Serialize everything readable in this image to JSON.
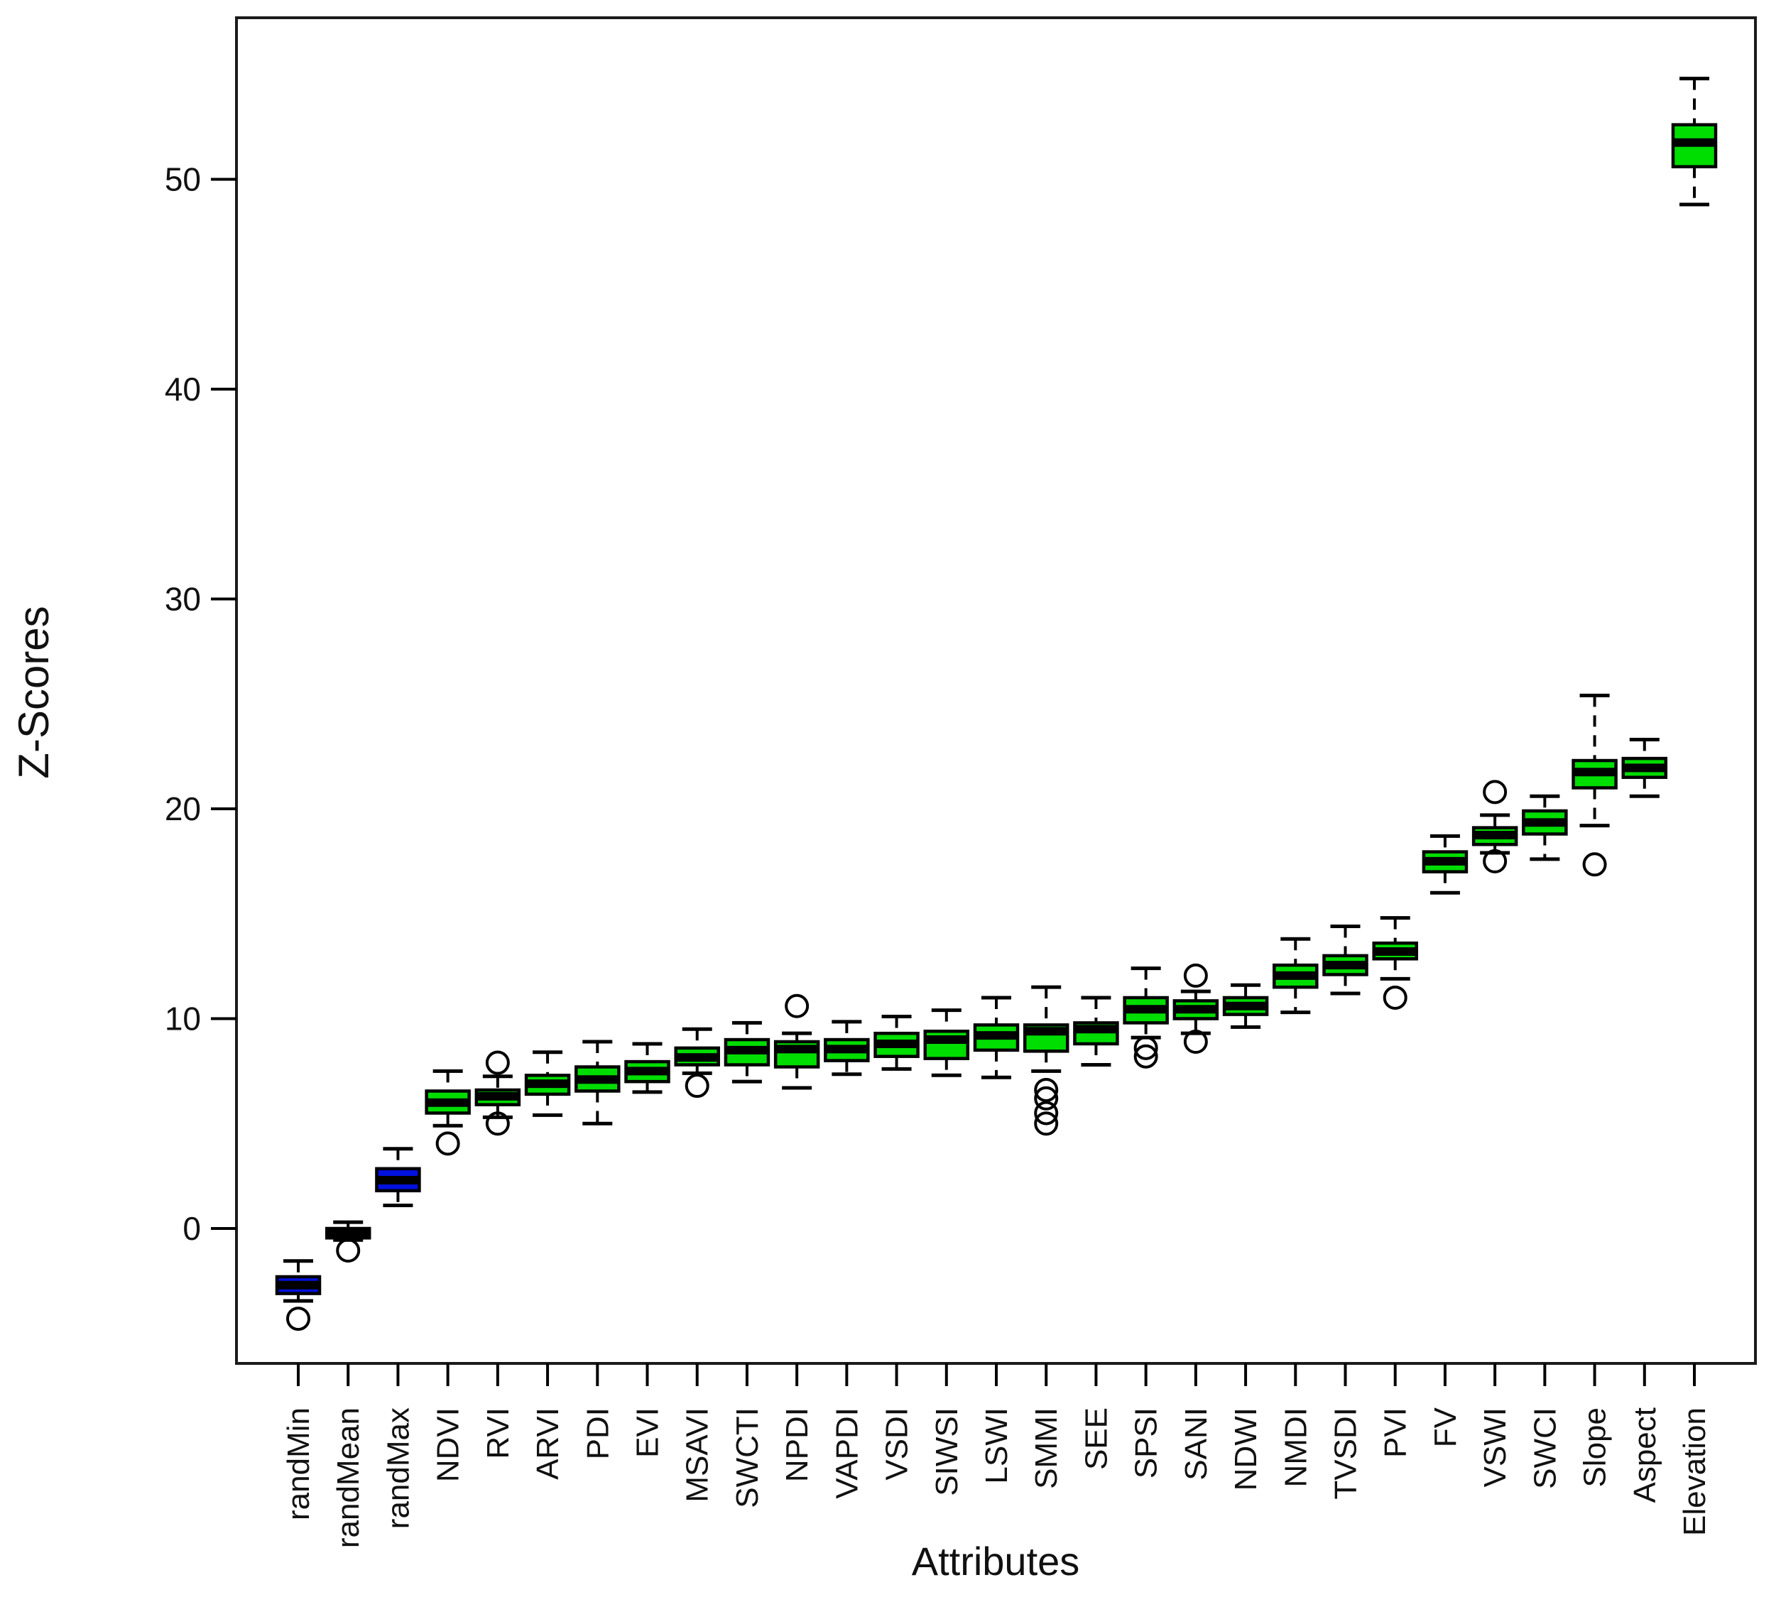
{
  "chart_data": {
    "type": "box",
    "title": "",
    "xlabel": "Attributes",
    "ylabel": "Z-Scores",
    "yticks": [
      0,
      10,
      20,
      30,
      40,
      50
    ],
    "ylim": [
      -6.4,
      57.6
    ],
    "grid": false,
    "legend": false,
    "colors": {
      "green_box": "#00DD00",
      "blue_box": "#0011DD",
      "line": "#000000",
      "background": "#ffffff"
    },
    "series": [
      {
        "label": "randMin",
        "fill": "blue",
        "low": -3.45,
        "q1": -3.1,
        "median": -2.7,
        "q3": -2.3,
        "high": -1.55,
        "outliers": [
          -4.3
        ]
      },
      {
        "label": "randMean",
        "fill": "blue",
        "low": -0.55,
        "q1": -0.45,
        "median": -0.22,
        "q3": 0.0,
        "high": 0.3,
        "outliers": [
          -1.05
        ]
      },
      {
        "label": "randMax",
        "fill": "blue",
        "low": 1.1,
        "q1": 1.8,
        "median": 2.3,
        "q3": 2.85,
        "high": 3.8,
        "outliers": []
      },
      {
        "label": "NDVI",
        "fill": "green",
        "low": 4.9,
        "q1": 5.5,
        "median": 6.0,
        "q3": 6.55,
        "high": 7.5,
        "outliers": [
          4.05
        ]
      },
      {
        "label": "RVI",
        "fill": "green",
        "low": 5.3,
        "q1": 5.9,
        "median": 6.3,
        "q3": 6.6,
        "high": 7.25,
        "outliers": [
          7.9,
          5.0
        ]
      },
      {
        "label": "ARVI",
        "fill": "green",
        "low": 5.4,
        "q1": 6.4,
        "median": 6.9,
        "q3": 7.3,
        "high": 8.4,
        "outliers": []
      },
      {
        "label": "PDI",
        "fill": "green",
        "low": 5.0,
        "q1": 6.55,
        "median": 7.1,
        "q3": 7.7,
        "high": 8.9,
        "outliers": []
      },
      {
        "label": "EVI",
        "fill": "green",
        "low": 6.5,
        "q1": 7.0,
        "median": 7.5,
        "q3": 7.95,
        "high": 8.8,
        "outliers": []
      },
      {
        "label": "MSAVI",
        "fill": "green",
        "low": 7.4,
        "q1": 7.8,
        "median": 8.15,
        "q3": 8.6,
        "high": 9.5,
        "outliers": [
          6.8
        ]
      },
      {
        "label": "SWCTI",
        "fill": "green",
        "low": 7.0,
        "q1": 7.8,
        "median": 8.5,
        "q3": 9.0,
        "high": 9.8,
        "outliers": []
      },
      {
        "label": "NPDI",
        "fill": "green",
        "low": 6.7,
        "q1": 7.7,
        "median": 8.55,
        "q3": 8.9,
        "high": 9.3,
        "outliers": [
          10.6
        ]
      },
      {
        "label": "VAPDI",
        "fill": "green",
        "low": 7.35,
        "q1": 8.0,
        "median": 8.55,
        "q3": 9.0,
        "high": 9.85,
        "outliers": []
      },
      {
        "label": "VSDI",
        "fill": "green",
        "low": 7.6,
        "q1": 8.2,
        "median": 8.8,
        "q3": 9.3,
        "high": 10.1,
        "outliers": []
      },
      {
        "label": "SIWSI",
        "fill": "green",
        "low": 7.3,
        "q1": 8.1,
        "median": 9.0,
        "q3": 9.4,
        "high": 10.4,
        "outliers": []
      },
      {
        "label": "LSWI",
        "fill": "green",
        "low": 7.2,
        "q1": 8.5,
        "median": 9.2,
        "q3": 9.7,
        "high": 11.0,
        "outliers": []
      },
      {
        "label": "SMMI",
        "fill": "green",
        "low": 7.5,
        "q1": 8.45,
        "median": 9.4,
        "q3": 9.7,
        "high": 11.5,
        "outliers": [
          6.6,
          6.2,
          5.5,
          5.0
        ]
      },
      {
        "label": "SEE",
        "fill": "green",
        "low": 7.8,
        "q1": 8.8,
        "median": 9.5,
        "q3": 9.8,
        "high": 11.0,
        "outliers": []
      },
      {
        "label": "SPSI",
        "fill": "green",
        "low": 9.1,
        "q1": 9.8,
        "median": 10.45,
        "q3": 11.0,
        "high": 12.4,
        "outliers": [
          8.6,
          8.2
        ]
      },
      {
        "label": "SANI",
        "fill": "green",
        "low": 9.3,
        "q1": 10.0,
        "median": 10.45,
        "q3": 10.85,
        "high": 11.3,
        "outliers": [
          12.05,
          8.9
        ]
      },
      {
        "label": "NDWI",
        "fill": "green",
        "low": 9.6,
        "q1": 10.2,
        "median": 10.6,
        "q3": 11.0,
        "high": 11.6,
        "outliers": []
      },
      {
        "label": "NMDI",
        "fill": "green",
        "low": 10.3,
        "q1": 11.5,
        "median": 12.05,
        "q3": 12.55,
        "high": 13.8,
        "outliers": []
      },
      {
        "label": "TVSDI",
        "fill": "green",
        "low": 11.2,
        "q1": 12.1,
        "median": 12.55,
        "q3": 13.0,
        "high": 14.4,
        "outliers": []
      },
      {
        "label": "PVI",
        "fill": "green",
        "low": 11.9,
        "q1": 12.85,
        "median": 13.2,
        "q3": 13.6,
        "high": 14.8,
        "outliers": [
          11.0
        ]
      },
      {
        "label": "FV",
        "fill": "green",
        "low": 16.0,
        "q1": 17.0,
        "median": 17.5,
        "q3": 17.95,
        "high": 18.7,
        "outliers": []
      },
      {
        "label": "VSWI",
        "fill": "green",
        "low": 17.9,
        "q1": 18.3,
        "median": 18.75,
        "q3": 19.1,
        "high": 19.7,
        "outliers": [
          20.8,
          17.5
        ]
      },
      {
        "label": "SWCI",
        "fill": "green",
        "low": 17.6,
        "q1": 18.8,
        "median": 19.35,
        "q3": 19.9,
        "high": 20.6,
        "outliers": []
      },
      {
        "label": "Slope",
        "fill": "green",
        "low": 19.2,
        "q1": 21.0,
        "median": 21.75,
        "q3": 22.3,
        "high": 25.4,
        "outliers": [
          17.35
        ]
      },
      {
        "label": "Aspect",
        "fill": "green",
        "low": 20.6,
        "q1": 21.5,
        "median": 21.95,
        "q3": 22.4,
        "high": 23.3,
        "outliers": []
      },
      {
        "label": "Elevation",
        "fill": "green",
        "low": 48.8,
        "q1": 50.6,
        "median": 51.75,
        "q3": 52.6,
        "high": 54.8,
        "outliers": []
      }
    ]
  }
}
